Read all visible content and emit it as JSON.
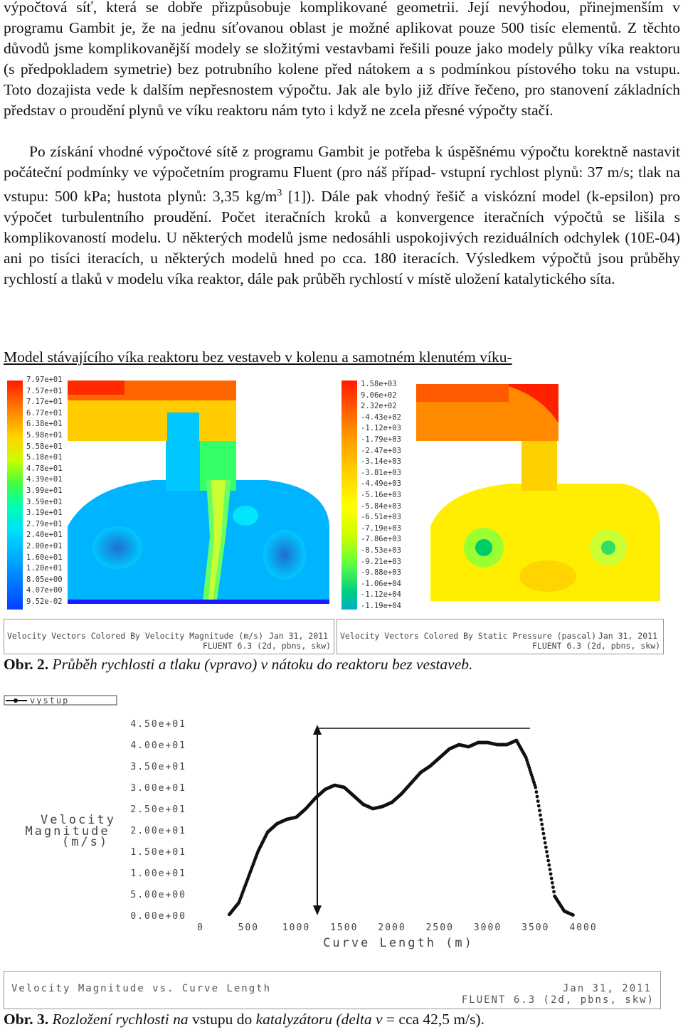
{
  "paragraphs": [
    "výpočtová síť, která se dobře přizpůsobuje komplikované geometrii. Její nevýhodou, přinejmenším v programu Gambit je, že na jednu síťovanou oblast je možné aplikovat pouze 500 tisíc elementů. Z těchto důvodů jsme komplikovanější modely se složitými vestavbami řešili pouze jako modely půlky víka reaktoru (s předpokladem symetrie) bez potrubního kolene před nátokem a s podmínkou pístového toku na vstupu. Toto dozajista vede k dalším nepřesnostem výpočtu. Jak ale bylo již dříve řečeno, pro stanovení základních představ o proudění plynů ve víku reaktoru nám tyto i když ne zcela přesné výpočty stačí.",
    "Po získání vhodné výpočtové sítě z programu Gambit je potřeba k úspěšnému výpočtu korektně nastavit počáteční podmínky ve výpočetním programu Fluent (pro náš případ- vstupní rychlost plynů: 37 m/s; tlak na vstupu: 500 kPa; hustota plynů: 3,35 kg/m",
    "3",
    " [1]). Dále pak vhodný řešič a viskózní model (k-epsilon) pro výpočet turbulentního proudění. Počet iteračních kroků a konvergence iteračních výpočtů se lišila s komplikovaností modelu. U některých modelů jsme nedosáhli uspokojivých reziduálních odchylek (10E-04) ani po tisíci iteracích, u některých modelů hned po cca. 180 iteracích. Výsledkem výpočtů jsou průběhy rychlostí a tlaků v modelu víka reaktor, dále pak průběh rychlostí v místě uložení katalytického síta."
  ],
  "section_heading": "Model stávajícího víka reaktoru bez vestaveb v kolenu a samotném klenutém víku-",
  "fig2": {
    "left_legend": [
      "7.97e+01",
      "7.57e+01",
      "7.17e+01",
      "6.77e+01",
      "6.38e+01",
      "5.98e+01",
      "5.58e+01",
      "5.18e+01",
      "4.78e+01",
      "4.39e+01",
      "3.99e+01",
      "3.59e+01",
      "3.19e+01",
      "2.79e+01",
      "2.40e+01",
      "2.00e+01",
      "1.60e+01",
      "1.20e+01",
      "8.05e+00",
      "4.07e+00",
      "9.52e-02"
    ],
    "right_legend": [
      "1.58e+03",
      "9.06e+02",
      "2.32e+02",
      "-4.43e+02",
      "-1.12e+03",
      "-1.79e+03",
      "-2.47e+03",
      "-3.14e+03",
      "-3.81e+03",
      "-4.49e+03",
      "-5.16e+03",
      "-5.84e+03",
      "-6.51e+03",
      "-7.19e+03",
      "-7.86e+03",
      "-8.53e+03",
      "-9.21e+03",
      "-9.88e+03",
      "-1.06e+04",
      "-1.12e+04",
      "-1.19e+04"
    ],
    "left_footer": {
      "title": "Velocity Vectors Colored By Velocity Magnitude (m/s)",
      "date": "Jan 31, 2011",
      "solver": "FLUENT 6.3 (2d, pbns, skw)"
    },
    "right_footer": {
      "title": "Velocity Vectors Colored By Static Pressure (pascal)",
      "date": "Jan 31, 2011",
      "solver": "FLUENT 6.3 (2d, pbns, skw)"
    },
    "caption_label": "Obr. 2.",
    "caption_text": " Průběh rychlosti a tlaku (vpravo) v nátoku do reaktoru bez vestaveb."
  },
  "chart_data": {
    "type": "scatter",
    "legend": [
      "vystup"
    ],
    "legend_placement": "top-left",
    "ylabel_lines": [
      "Velocity",
      "Magnitude",
      "(m/s)"
    ],
    "xlabel": "Curve Length (m)",
    "x_ticks": [
      "0",
      "500",
      "1000",
      "1500",
      "2000",
      "2500",
      "3000",
      "3500",
      "4000"
    ],
    "y_ticks": [
      "0.00e+00",
      "5.00e+00",
      "1.00e+01",
      "1.50e+01",
      "2.00e+01",
      "2.50e+01",
      "3.00e+01",
      "3.50e+01",
      "4.00e+01",
      "4.50e+01"
    ],
    "xlim": [
      0,
      4000
    ],
    "ylim": [
      0,
      45
    ],
    "grid": false,
    "series": [
      {
        "name": "vystup",
        "x": [
          300,
          400,
          500,
          600,
          700,
          800,
          900,
          1000,
          1100,
          1200,
          1300,
          1400,
          1500,
          1600,
          1700,
          1800,
          1900,
          2000,
          2100,
          2200,
          2300,
          2400,
          2500,
          2600,
          2700,
          2800,
          2900,
          3000,
          3100,
          3200,
          3300,
          3400,
          3500,
          3600,
          3700,
          3800,
          3900
        ],
        "y": [
          0.2,
          3,
          9,
          15,
          19.5,
          21.5,
          22.5,
          23,
          25,
          27.5,
          29.5,
          30.5,
          30,
          28,
          26,
          25,
          25.5,
          26.5,
          28.5,
          31,
          33.5,
          35,
          37,
          39,
          40,
          39.5,
          40.5,
          40.5,
          40,
          40,
          41,
          37,
          30,
          17,
          4.5,
          1,
          0
        ]
      }
    ],
    "annotation": "vertical double arrow between minimum and maximum velocity"
  },
  "fig3_footer": {
    "title": "Velocity Magnitude vs. Curve Length",
    "date": "Jan 31, 2011",
    "solver": "FLUENT 6.3 (2d, pbns, skw)"
  },
  "fig3_caption": {
    "label": "Obr. 3.",
    "part1": " Rozložení rychlosti ",
    "part2": "na",
    "part3": " vstupu do ",
    "part4": "katalyzátoru (delta ",
    "part5": "v",
    "part6": " = ",
    "part7": "cca 42,5 m/s)."
  },
  "colors": {
    "velocity_low": "#1e90ff",
    "velocity_high": "#ff2a00",
    "pressure_high": "#e00000",
    "pressure_mid": "#ffe600",
    "pressure_low": "#00d060"
  }
}
